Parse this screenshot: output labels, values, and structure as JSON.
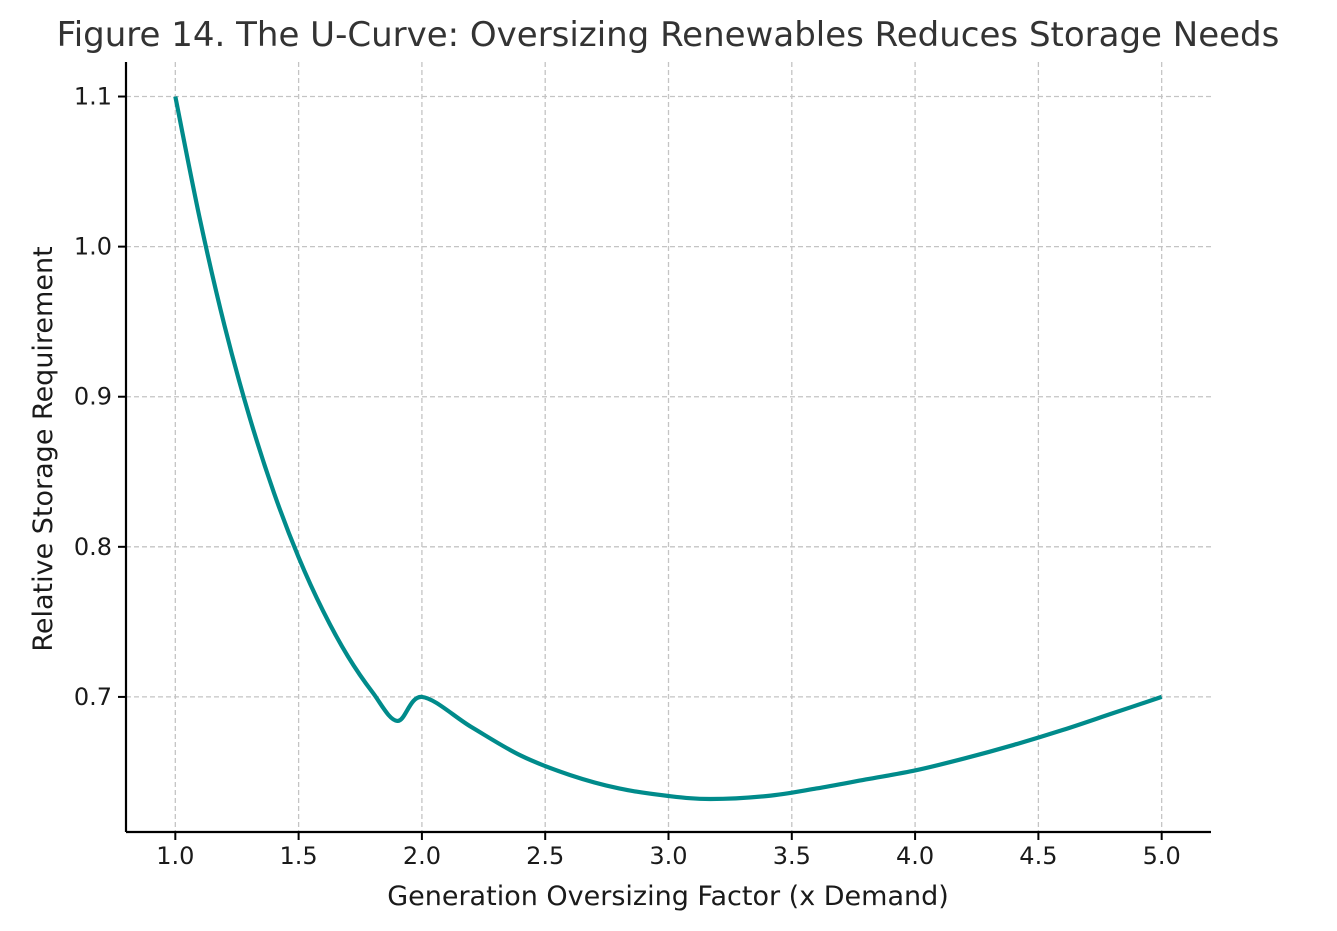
{
  "chart_data": {
    "type": "line",
    "title": "Figure 14. The U-Curve: Oversizing Renewables Reduces Storage Needs",
    "xlabel": "Generation Oversizing Factor (x Demand)",
    "ylabel": "Relative Storage Requirement",
    "xlim": [
      0.8,
      5.2
    ],
    "ylim": [
      0.61,
      1.123
    ],
    "x_ticks": [
      1.0,
      1.5,
      2.0,
      2.5,
      3.0,
      3.5,
      4.0,
      4.5,
      5.0
    ],
    "x_tick_labels": [
      "1.0",
      "1.5",
      "2.0",
      "2.5",
      "3.0",
      "3.5",
      "4.0",
      "4.5",
      "5.0"
    ],
    "y_ticks": [
      0.7,
      0.8,
      0.9,
      1.0,
      1.1
    ],
    "y_tick_labels": [
      "0.7",
      "0.8",
      "0.9",
      "1.0",
      "1.1"
    ],
    "grid": true,
    "series": [
      {
        "color": "#008b8b",
        "x": [
          1.0,
          1.1,
          1.2,
          1.3,
          1.4,
          1.5,
          1.6,
          1.7,
          1.8,
          1.9,
          2.0,
          2.2,
          2.4,
          2.6,
          2.8,
          3.0,
          3.17,
          3.4,
          3.6,
          3.8,
          4.0,
          4.2,
          4.4,
          4.6,
          4.8,
          5.0
        ],
        "y": [
          1.1,
          1.018,
          0.947,
          0.887,
          0.836,
          0.793,
          0.757,
          0.727,
          0.703,
          0.684,
          0.7,
          0.68,
          0.661,
          0.648,
          0.639,
          0.634,
          0.632,
          0.634,
          0.639,
          0.645,
          0.651,
          0.659,
          0.668,
          0.678,
          0.689,
          0.7
        ]
      }
    ]
  }
}
